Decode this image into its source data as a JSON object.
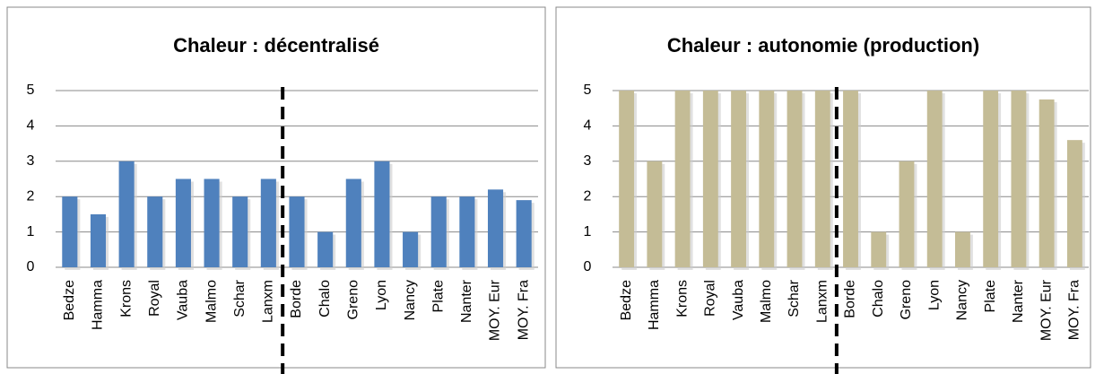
{
  "chart_data": [
    {
      "type": "bar",
      "title": "Chaleur : décentralisé",
      "categories": [
        "Bedze",
        "Hamma",
        "Krons",
        "Royal",
        "Vauba",
        "Malmo",
        "Schar",
        "Lanxm",
        "Borde",
        "Chalo",
        "Greno",
        "Lyon",
        "Nancy",
        "Plate",
        "Nanter",
        "MOY. Eur",
        "MOY. Fra"
      ],
      "values": [
        2,
        1.5,
        3,
        2,
        2.5,
        2.5,
        2,
        2.5,
        2,
        1,
        2.5,
        3,
        1,
        2,
        2,
        2.2,
        1.9
      ],
      "color": "#4f81bd",
      "ylim": [
        0,
        5
      ],
      "yticks": [
        0,
        1,
        2,
        3,
        4,
        5
      ],
      "grid": true
    },
    {
      "type": "bar",
      "title": "Chaleur : autonomie (production)",
      "categories": [
        "Bedze",
        "Hamma",
        "Krons",
        "Royal",
        "Vauba",
        "Malmo",
        "Schar",
        "Lanxm",
        "Borde",
        "Chalo",
        "Greno",
        "Lyon",
        "Nancy",
        "Plate",
        "Nanter",
        "MOY. Eur",
        "MOY. Fra"
      ],
      "values": [
        5,
        3,
        5,
        5,
        5,
        5,
        5,
        5,
        5,
        1,
        3,
        5,
        1,
        5,
        5,
        4.75,
        3.6
      ],
      "color": "#c4bc96",
      "ylim": [
        0,
        5
      ],
      "yticks": [
        0,
        1,
        2,
        3,
        4,
        5
      ],
      "grid": true
    }
  ]
}
